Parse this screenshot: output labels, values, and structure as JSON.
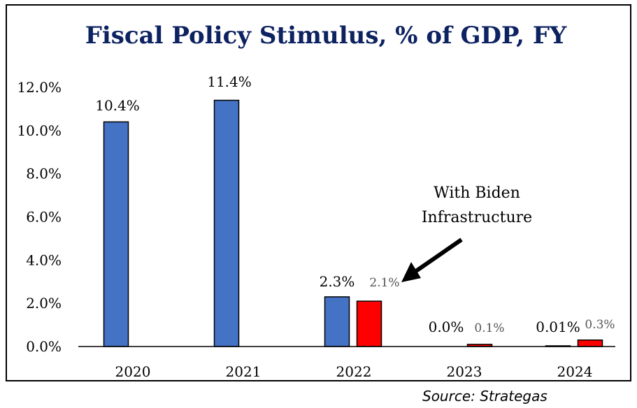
{
  "chart_data": {
    "type": "bar",
    "title": "Fiscal Policy Stimulus, % of GDP, FY",
    "categories": [
      "2020",
      "2021",
      "2022",
      "2023",
      "2024"
    ],
    "ylim": [
      0,
      12
    ],
    "yticks": [
      "0.0%",
      "2.0%",
      "4.0%",
      "6.0%",
      "8.0%",
      "10.0%",
      "12.0%"
    ],
    "grid": false,
    "series": [
      {
        "color": "#4472c4",
        "values": [
          10.4,
          11.4,
          2.3,
          0.0,
          0.01
        ],
        "labels": [
          "10.4%",
          "11.4%",
          "2.3%",
          "0.0%",
          "0.01%"
        ]
      },
      {
        "color": "#ff0000",
        "values": [
          null,
          null,
          2.1,
          0.1,
          0.3
        ],
        "labels": [
          "",
          "",
          "2.1%",
          "0.1%",
          "0.3%"
        ]
      }
    ],
    "annotation": {
      "line1": "With Biden",
      "line2": "Infrastructure"
    }
  },
  "source": "Source: Strategas"
}
